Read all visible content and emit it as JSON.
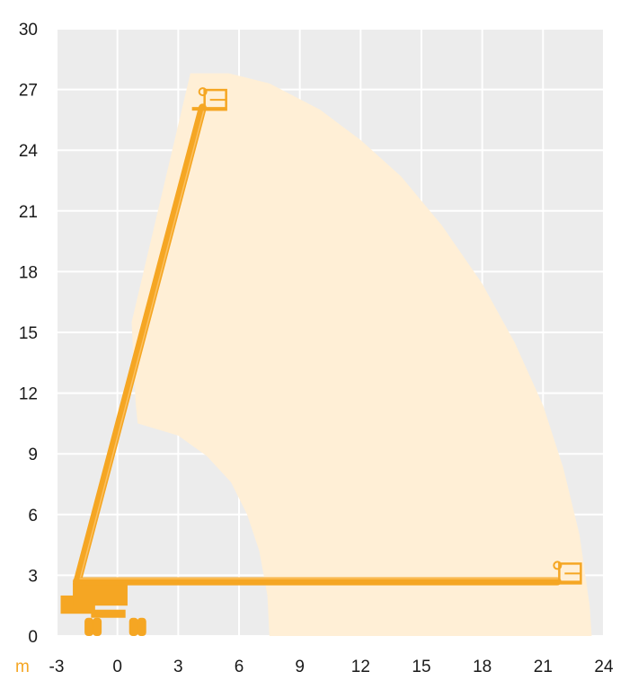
{
  "chart_data": {
    "type": "working-range-diagram",
    "x_unit": "m",
    "xlim": [
      -3,
      24
    ],
    "ylim": [
      0,
      30
    ],
    "x_ticks": [
      -3,
      0,
      3,
      6,
      9,
      12,
      15,
      18,
      21,
      24
    ],
    "y_ticks": [
      0,
      3,
      6,
      9,
      12,
      15,
      18,
      21,
      24,
      27,
      30
    ],
    "grid": true,
    "envelope": {
      "outer": [
        [
          3.6,
          27.8
        ],
        [
          5.5,
          27.8
        ],
        [
          7.5,
          27.3
        ],
        [
          10.0,
          26.0
        ],
        [
          12.0,
          24.5
        ],
        [
          14.0,
          22.7
        ],
        [
          16.0,
          20.3
        ],
        [
          18.0,
          17.4
        ],
        [
          19.6,
          14.5
        ],
        [
          21.0,
          11.4
        ],
        [
          22.0,
          8.3
        ],
        [
          22.8,
          5.0
        ],
        [
          23.3,
          1.5
        ],
        [
          23.4,
          0
        ]
      ],
      "inner": [
        [
          7.5,
          0
        ],
        [
          7.4,
          2.0
        ],
        [
          7.0,
          4.2
        ],
        [
          6.4,
          6.0
        ],
        [
          5.6,
          7.6
        ],
        [
          4.4,
          8.9
        ],
        [
          3.0,
          9.9
        ],
        [
          1.0,
          10.5
        ]
      ],
      "left_edge": [
        [
          1.0,
          10.5
        ],
        [
          0.9,
          11.5
        ],
        [
          0.7,
          15.5
        ],
        [
          3.6,
          27.8
        ]
      ]
    },
    "colors": {
      "envelope": "#ffefd6",
      "machine": "#f5a623",
      "grid": "#ffffff",
      "plot_bg": "#ececec",
      "unit": "#f5a623"
    },
    "positions": [
      {
        "name": "vertical",
        "boom_base": [
          -2.0,
          2.6
        ],
        "boom_top": [
          4.2,
          26.1
        ],
        "basket": [
          4.3,
          26.0
        ]
      },
      {
        "name": "horizontal",
        "boom_base": [
          -2.0,
          2.7
        ],
        "boom_top": [
          21.7,
          2.7
        ],
        "basket": [
          21.8,
          2.6
        ]
      }
    ]
  }
}
